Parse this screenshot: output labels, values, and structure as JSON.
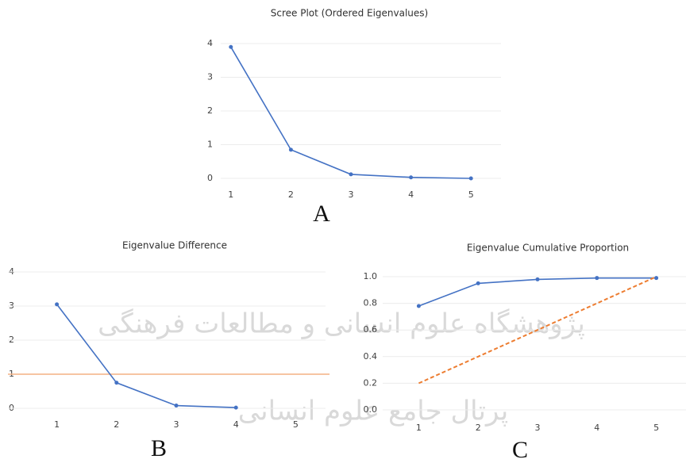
{
  "chart_data": [
    {
      "type": "line",
      "title": "Scree Plot (Ordered Eigenvalues)",
      "panel_label": "A",
      "categories": [
        "1",
        "2",
        "3",
        "4",
        "5"
      ],
      "series": [
        {
          "color": "#4472c4",
          "markers": true,
          "values": [
            3.9,
            0.85,
            0.12,
            0.03,
            0.0
          ]
        }
      ],
      "ylim": [
        0,
        4
      ],
      "yticks": [
        0,
        1,
        2,
        3,
        4
      ],
      "grid": true
    },
    {
      "type": "line",
      "title": "Eigenvalue Difference",
      "panel_label": "B",
      "categories": [
        "1",
        "2",
        "3",
        "4",
        "5"
      ],
      "series": [
        {
          "color": "#4472c4",
          "markers": true,
          "values": [
            3.05,
            0.75,
            0.08,
            0.02,
            null
          ]
        }
      ],
      "hline": 1,
      "hline_color": "#f4b183",
      "ylim": [
        0,
        4
      ],
      "yticks": [
        0,
        1,
        2,
        3,
        4
      ],
      "grid": true
    },
    {
      "type": "line",
      "title": "Eigenvalue Cumulative Proportion",
      "panel_label": "C",
      "categories": [
        "1",
        "2",
        "3",
        "4",
        "5"
      ],
      "series": [
        {
          "color": "#4472c4",
          "markers": true,
          "values": [
            0.78,
            0.95,
            0.98,
            0.99,
            0.99
          ]
        },
        {
          "color": "#ed7d31",
          "markers": false,
          "dashed": true,
          "values": [
            0.2,
            0.4,
            0.6,
            0.8,
            1.0
          ]
        }
      ],
      "ylim": [
        0,
        1
      ],
      "yticks": [
        {
          "value": 0,
          "label": "0.0"
        },
        0.2,
        0.4,
        0.6,
        0.8,
        {
          "value": 1,
          "label": "1.0"
        }
      ],
      "grid": true
    }
  ],
  "watermark": [
    "پژوهشگاه علوم انسانی و مطالعات فرهنگی",
    "پرتال جامع علوم انسانی"
  ]
}
